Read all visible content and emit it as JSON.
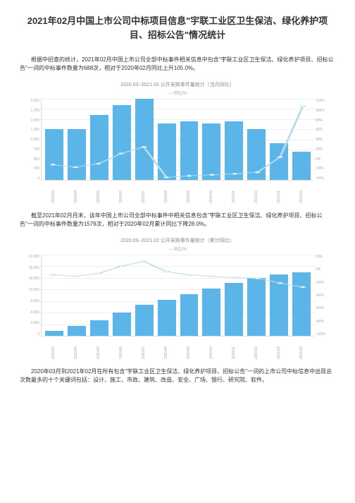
{
  "title": "2021年02月中国上市公司中标项目信息\"宇联工业区卫生保洁、绿化养护项目、招标公告\"情况统计",
  "para1": "根据中招查的统计，2021年02月中国上市公司全部中标事件相关信息中包含\"宇联工业区卫生保洁、绿化养护项目、招标公告\"一词的中标事件数量为688次，相对于2020年02月同比上升105.0%。",
  "para2": "截至2021年02月月末，该年中国上市公司全部中标事件中相关信息包含\"宇联工业区卫生保洁、绿化养护项目、招标公告\"一词的中标事件数量为1579次，相对于2020年02月累计同比下降28.0%。",
  "para3": "2020年03月到2021年02月在所有包含\"宇联工业区卫生保洁、绿化养护项目、招标公告\"一词的上市公司中标信息中出现总次数最多的十个关键词包括：设计、施工、市政、建筑、改造、安全、广场、银行、研究院、软件。",
  "chart1": {
    "title": "2020.03~2021.02 公开采购事件量统计（当月同比）",
    "legend": "— 同比/%",
    "xlabels": [
      "2020/03",
      "2020/04",
      "2020/05",
      "2020/06",
      "2020/07",
      "2020/08",
      "2020/09",
      "2020/10",
      "2020/11",
      "2020/12",
      "2021/01",
      "2021/02"
    ],
    "yleft": [
      "2,000",
      "1,750",
      "1,500",
      "1,250",
      "1,000",
      "750",
      "500",
      "250",
      "0"
    ],
    "yright": [
      "120%",
      "100%",
      "80%",
      "60%",
      "40%",
      "20%",
      "0%",
      "-20%",
      "-40%"
    ],
    "bars": [
      1250,
      1250,
      1600,
      1850,
      2000,
      1400,
      1450,
      1400,
      1450,
      1250,
      900,
      700
    ],
    "ymax": 2000,
    "line": [
      -10,
      -15,
      -8,
      12,
      25,
      -35,
      -32,
      -30,
      -28,
      -25,
      5,
      105
    ],
    "line_min": -40,
    "line_max": 120,
    "bar_color": "#5bb5e8",
    "line_color": "#b8dce8"
  },
  "chart2": {
    "title": "2020.03~2021.02 公开采购事件量统计（累计同比）",
    "legend": "— 同比/%",
    "xlabels": [
      "2020/03",
      "2020/04",
      "2020/05",
      "2020/06",
      "2020/07",
      "2020/08",
      "2020/09",
      "2020/10",
      "2020/11",
      "2020/12",
      "2021/01",
      "2021/02"
    ],
    "yleft": [
      "21,000",
      "18,000",
      "15,000",
      "12,000",
      "9,000",
      "6,000",
      "3,000",
      "0"
    ],
    "yright": [
      "20%",
      "0%",
      "-20%",
      "-40%",
      "-60%",
      "-80%",
      "-100%"
    ],
    "bars": [
      1250,
      2500,
      4100,
      5950,
      7950,
      9350,
      10800,
      12200,
      13650,
      14900,
      15800,
      16500
    ],
    "ymax": 21000,
    "line": [
      -10,
      -12,
      -8,
      3,
      10,
      -5,
      -10,
      -12,
      -14,
      -15,
      -22,
      -28
    ],
    "line_min": -100,
    "line_max": 20,
    "bar_color": "#5bb5e8",
    "line_color": "#b8dce8"
  }
}
